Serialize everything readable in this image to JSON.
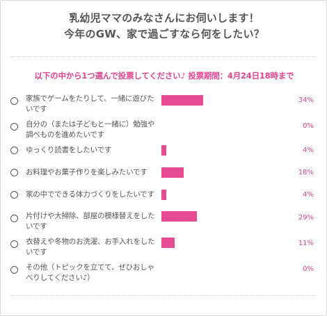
{
  "poll": {
    "title_line1": "乳幼児ママのみなさんにお伺いします！",
    "title_line2": "今年のGW、家で過ごすなら何をしたい？",
    "instruction": "以下の中から1つ選んで投票してください♪ 投票期間：4月24日18時まで",
    "accent_color": "#e84b95",
    "options": [
      {
        "label": "家族でゲームをたりして、一緒に遊びたいです",
        "percent": "34%",
        "value": 34
      },
      {
        "label": "自分の（または子どもと一緒に）勉強や調べものを進めたいです",
        "percent": "0%",
        "value": 0
      },
      {
        "label": "ゆっくり読書をしたいです",
        "percent": "4%",
        "value": 4
      },
      {
        "label": "お料理やお菓子作りを楽しみたいです",
        "percent": "18%",
        "value": 18
      },
      {
        "label": "家の中でできる体力づくりをしたいです",
        "percent": "4%",
        "value": 4
      },
      {
        "label": "片付けや大掃除、部屋の模様替えをしたいです",
        "percent": "29%",
        "value": 29
      },
      {
        "label": "衣替えや冬物のお洗濯、お手入れをしたいです",
        "percent": "11%",
        "value": 11
      },
      {
        "label": "その他（トピックを立てて、ぜひおしゃべりしてください♪）",
        "percent": "0%",
        "value": 0
      }
    ]
  }
}
